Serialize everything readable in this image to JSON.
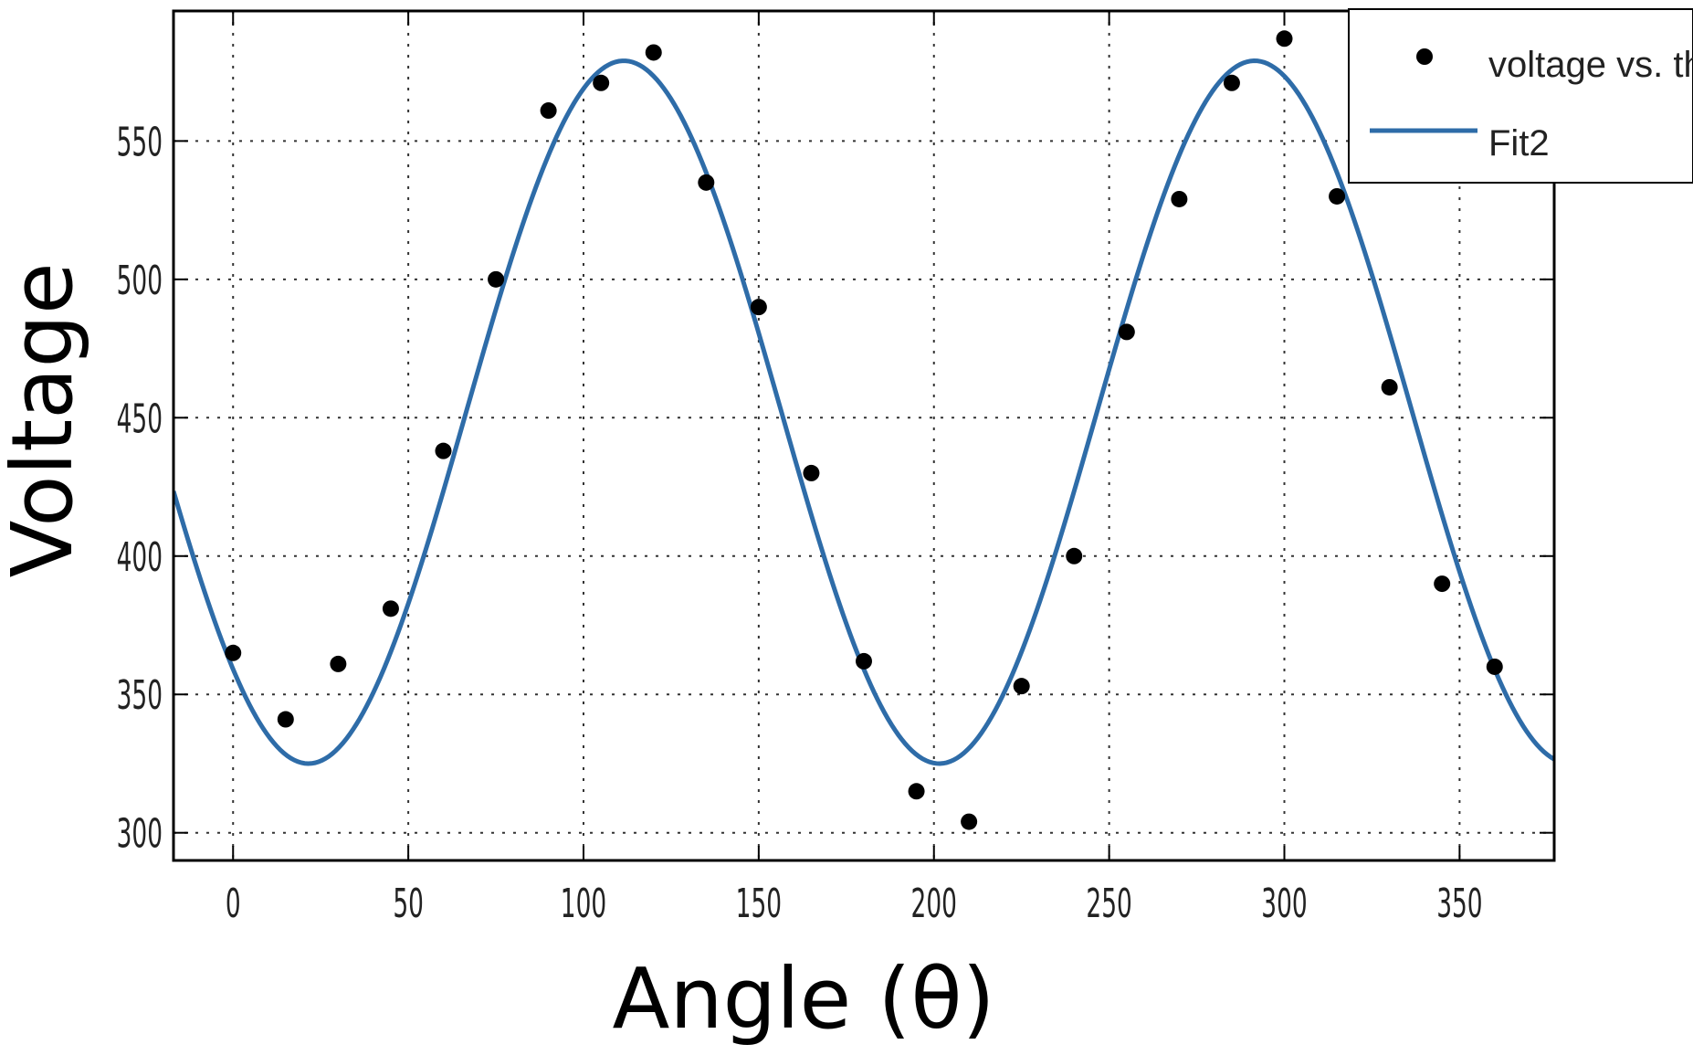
{
  "chart_data": {
    "type": "scatter",
    "xlabel": "Angle (θ)",
    "ylabel": "Voltage",
    "xlim": [
      -17,
      377
    ],
    "ylim": [
      290,
      597
    ],
    "xticks": [
      0,
      50,
      100,
      150,
      200,
      250,
      300,
      350
    ],
    "yticks": [
      300,
      350,
      400,
      450,
      500,
      550
    ],
    "grid": true,
    "legend_position": "top-right",
    "series": [
      {
        "name": "voltage vs. th",
        "kind": "scatter",
        "color": "#000000",
        "x": [
          0,
          15,
          30,
          45,
          60,
          75,
          90,
          105,
          120,
          135,
          150,
          165,
          180,
          195,
          210,
          225,
          240,
          255,
          270,
          285,
          300,
          315,
          330,
          345,
          360
        ],
        "y": [
          365,
          341,
          361,
          381,
          438,
          500,
          561,
          571,
          582,
          535,
          490,
          430,
          362,
          315,
          304,
          353,
          400,
          481,
          529,
          571,
          587,
          530,
          461,
          390,
          360
        ]
      },
      {
        "name": "Fit2",
        "kind": "line",
        "color": "#2e6ca8",
        "model": "a + b*sin(2*pi*(x - phase)/period)",
        "params": {
          "a": 452,
          "b": 127,
          "period": 180,
          "phase": 66.5
        }
      }
    ]
  }
}
